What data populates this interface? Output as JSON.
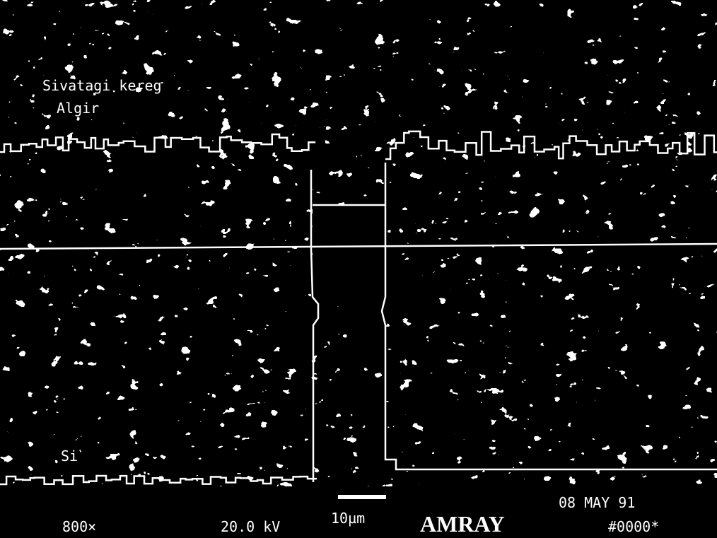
{
  "image_labels": {
    "top": "Sivatagi kereg",
    "second": "Algir",
    "bottom": "Si"
  },
  "info_bar": {
    "magnification": "800×",
    "voltage": "20.0 kV",
    "scale_bar": "10µm",
    "brand": "AMRAY",
    "date": "08 MAY 91",
    "frame": "#0000*"
  }
}
